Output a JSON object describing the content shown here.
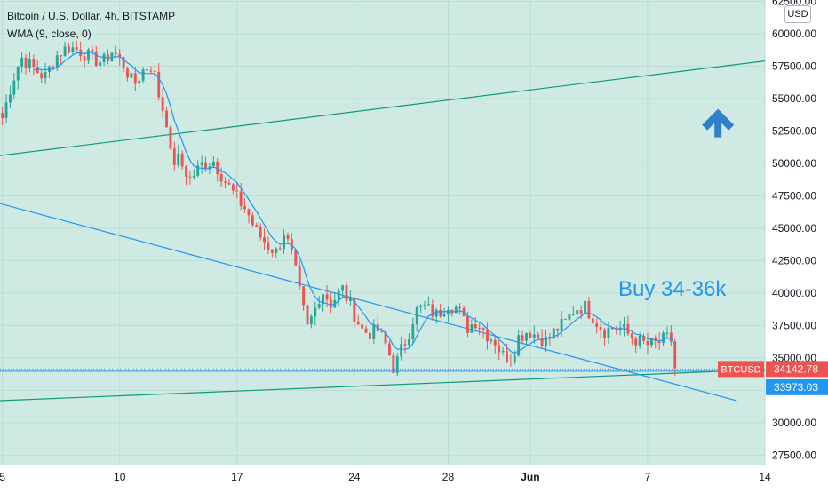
{
  "legend": {
    "symbol": "Bitcoin / U.S. Dollar, 4h, BITSTAMP",
    "indicator": "WMA (9, close, 0)"
  },
  "currency_button": "USD",
  "annotation": "Buy 34-36k",
  "price_labels": {
    "last": {
      "label": "BTCUSD",
      "value": "34142.78"
    },
    "wma": {
      "value": "33973.03"
    }
  },
  "colors": {
    "plot_bg": "#cfeae3",
    "up": "#26a69a",
    "down": "#ef5350",
    "wma": "#2196f3",
    "trendline_green": "#0d9b7a",
    "trendline_blue": "#2196f3",
    "arrow": "#2f7fc9",
    "last_price": "#ef5350"
  },
  "chart_data": {
    "type": "candlestick",
    "title": "Bitcoin / U.S. Dollar, 4h, BITSTAMP",
    "y_ticks": [
      "27500.00",
      "30000.00",
      "32500.00",
      "35000.00",
      "37500.00",
      "40000.00",
      "42500.00",
      "45000.00",
      "47500.00",
      "50000.00",
      "52500.00",
      "55000.00",
      "57500.00",
      "60000.00",
      "62500.00"
    ],
    "ylim": [
      26700,
      62600
    ],
    "x_ticks": [
      "5",
      "10",
      "17",
      "24",
      "28",
      "Jun",
      "7",
      "14"
    ],
    "x_tick_days": [
      5,
      10,
      15,
      20,
      24,
      27.5,
      32.5,
      37.5
    ],
    "xlim": [
      4.9,
      37.5
    ],
    "candles_per_day": 6,
    "start_day": 5,
    "close_anchors": [
      [
        5.0,
        53500
      ],
      [
        5.4,
        56200
      ],
      [
        5.8,
        58200
      ],
      [
        6.3,
        57400
      ],
      [
        6.8,
        56600
      ],
      [
        7.3,
        58300
      ],
      [
        7.8,
        59000
      ],
      [
        8.3,
        58700
      ],
      [
        8.8,
        58100
      ],
      [
        9.3,
        57800
      ],
      [
        9.7,
        58700
      ],
      [
        10.2,
        57500
      ],
      [
        10.6,
        56000
      ],
      [
        11.0,
        57200
      ],
      [
        11.4,
        57600
      ],
      [
        11.7,
        55000
      ],
      [
        12.0,
        53300
      ],
      [
        12.2,
        50100
      ],
      [
        12.5,
        50300
      ],
      [
        13.0,
        48800
      ],
      [
        13.5,
        49900
      ],
      [
        14.0,
        50200
      ],
      [
        14.5,
        48600
      ],
      [
        15.0,
        47300
      ],
      [
        15.4,
        46400
      ],
      [
        15.8,
        44800
      ],
      [
        16.3,
        43700
      ],
      [
        16.7,
        43100
      ],
      [
        17.0,
        44800
      ],
      [
        17.4,
        42500
      ],
      [
        17.7,
        39700
      ],
      [
        18.0,
        37300
      ],
      [
        18.3,
        38600
      ],
      [
        18.6,
        40300
      ],
      [
        19.0,
        39200
      ],
      [
        19.5,
        40300
      ],
      [
        20.0,
        38400
      ],
      [
        20.3,
        37200
      ],
      [
        20.6,
        36900
      ],
      [
        21.0,
        37100
      ],
      [
        21.4,
        35800
      ],
      [
        21.7,
        34100
      ],
      [
        22.0,
        35600
      ],
      [
        22.3,
        36800
      ],
      [
        22.6,
        38600
      ],
      [
        23.0,
        38900
      ],
      [
        23.5,
        38300
      ],
      [
        24.0,
        39200
      ],
      [
        24.4,
        38800
      ],
      [
        24.8,
        37300
      ],
      [
        25.2,
        37900
      ],
      [
        25.6,
        36900
      ],
      [
        26.0,
        36300
      ],
      [
        26.3,
        35200
      ],
      [
        26.7,
        35100
      ],
      [
        27.0,
        36600
      ],
      [
        27.4,
        37100
      ],
      [
        27.8,
        36700
      ],
      [
        28.2,
        36300
      ],
      [
        28.6,
        37200
      ],
      [
        29.0,
        37700
      ],
      [
        29.4,
        38800
      ],
      [
        29.8,
        39000
      ],
      [
        30.2,
        38100
      ],
      [
        30.6,
        37100
      ],
      [
        31.0,
        37300
      ],
      [
        31.4,
        37300
      ],
      [
        31.8,
        36600
      ],
      [
        32.2,
        36200
      ],
      [
        32.5,
        36000
      ],
      [
        32.9,
        36100
      ],
      [
        33.3,
        36500
      ],
      [
        33.6,
        36300
      ],
      [
        33.75,
        34200
      ]
    ],
    "wma_period": 9,
    "trendlines": [
      {
        "name": "upper-channel",
        "color": "green",
        "points": [
          [
            4.9,
            50600
          ],
          [
            37.5,
            57900
          ]
        ]
      },
      {
        "name": "lower-channel",
        "color": "green",
        "points": [
          [
            4.9,
            31700
          ],
          [
            37.5,
            34100
          ]
        ]
      },
      {
        "name": "descending-trendline",
        "color": "blue",
        "points": [
          [
            4.9,
            46900
          ],
          [
            36.3,
            31700
          ]
        ]
      }
    ],
    "horizontal_lines": [
      34142.78,
      33973.03
    ],
    "arrow_marker": {
      "x": 35.5,
      "y": 53100,
      "direction": "up"
    }
  }
}
